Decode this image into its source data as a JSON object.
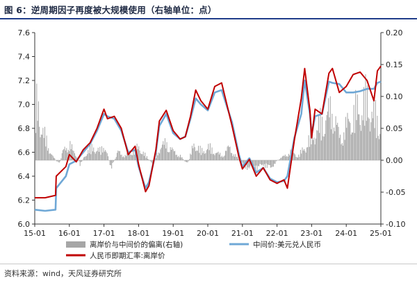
{
  "title": "图 6：逆周期因子再度被大规模使用（右轴单位：点）",
  "source": "资料来源：wind，天风证券研究所",
  "colors": {
    "deviation": "#a6a6a6",
    "central": "#6fa8d6",
    "offshore": "#c00000",
    "title_line": "#1f3c8a"
  },
  "chart_data": {
    "type": "line",
    "title": "逆周期因子再度被大规模使用（右轴单位：点）",
    "x_ticks": [
      "15-01",
      "16-01",
      "17-01",
      "18-01",
      "19-01",
      "20-01",
      "21-01",
      "22-01",
      "23-01",
      "24-01",
      "25-01"
    ],
    "x_range": [
      2015.0,
      2025.0
    ],
    "y_left": {
      "ylim": [
        6.0,
        7.6
      ],
      "ticks": [
        "6.0",
        "6.2",
        "6.4",
        "6.6",
        "6.8",
        "7.0",
        "7.2",
        "7.4",
        "7.6"
      ]
    },
    "y_right": {
      "ylim": [
        -0.1,
        0.2
      ],
      "ticks": [
        "-0.10",
        "-0.05",
        "0.00",
        "0.05",
        "0.10",
        "0.15",
        "0.20"
      ]
    },
    "series": [
      {
        "name": "离岸价与中间价的偏离(右轴)",
        "type": "bar",
        "axis": "right",
        "x": [
          2015.0,
          2015.1,
          2015.2,
          2015.3,
          2015.4,
          2015.5,
          2015.6,
          2015.7,
          2015.8,
          2015.9,
          2016.0,
          2016.1,
          2016.2,
          2016.3,
          2016.5,
          2016.7,
          2016.9,
          2017.0,
          2017.2,
          2017.4,
          2017.6,
          2017.8,
          2018.0,
          2018.2,
          2018.4,
          2018.6,
          2018.8,
          2019.0,
          2019.2,
          2019.4,
          2019.6,
          2019.8,
          2020.0,
          2020.2,
          2020.4,
          2020.6,
          2020.8,
          2021.0,
          2021.2,
          2021.4,
          2021.6,
          2021.8,
          2022.0,
          2022.2,
          2022.4,
          2022.6,
          2022.8,
          2023.0,
          2023.2,
          2023.4,
          2023.6,
          2023.8,
          2024.0,
          2024.2,
          2024.4,
          2024.6,
          2024.8,
          2025.0
        ],
        "values": [
          0.12,
          0.13,
          0.07,
          0.05,
          0.03,
          0.01,
          0.0,
          -0.01,
          0.02,
          0.03,
          0.04,
          0.02,
          0.01,
          -0.01,
          0.02,
          0.03,
          0.02,
          0.04,
          -0.02,
          0.02,
          0.01,
          0.02,
          0.03,
          0.01,
          -0.01,
          0.03,
          0.04,
          0.02,
          0.01,
          -0.01,
          0.04,
          0.02,
          0.03,
          0.02,
          0.01,
          0.03,
          0.01,
          -0.01,
          -0.02,
          -0.02,
          -0.01,
          -0.02,
          0.0,
          0.01,
          0.02,
          0.01,
          0.03,
          0.06,
          0.08,
          0.1,
          0.12,
          0.05,
          0.08,
          0.11,
          0.12,
          0.14,
          0.1,
          0.09
        ]
      },
      {
        "name": "中间价:美元兑人民币",
        "type": "line",
        "axis": "left",
        "x": [
          2015.0,
          2015.3,
          2015.6,
          2015.62,
          2015.9,
          2016.0,
          2016.2,
          2016.4,
          2016.6,
          2016.8,
          2017.0,
          2017.1,
          2017.3,
          2017.5,
          2017.7,
          2017.9,
          2018.0,
          2018.2,
          2018.3,
          2018.5,
          2018.6,
          2018.8,
          2019.0,
          2019.2,
          2019.35,
          2019.5,
          2019.65,
          2019.8,
          2020.0,
          2020.2,
          2020.4,
          2020.5,
          2020.7,
          2020.9,
          2021.0,
          2021.2,
          2021.4,
          2021.6,
          2021.8,
          2022.0,
          2022.2,
          2022.3,
          2022.5,
          2022.7,
          2022.8,
          2022.95,
          2023.0,
          2023.1,
          2023.3,
          2023.5,
          2023.6,
          2023.8,
          2024.0,
          2024.2,
          2024.4,
          2024.6,
          2024.8,
          2024.9,
          2025.0
        ],
        "values": [
          6.12,
          6.11,
          6.12,
          6.3,
          6.4,
          6.5,
          6.53,
          6.6,
          6.67,
          6.78,
          6.92,
          6.9,
          6.88,
          6.78,
          6.6,
          6.62,
          6.48,
          6.3,
          6.35,
          6.6,
          6.82,
          6.92,
          6.76,
          6.71,
          6.73,
          6.88,
          7.05,
          7.0,
          6.95,
          7.1,
          7.12,
          7.03,
          6.85,
          6.58,
          6.48,
          6.55,
          6.43,
          6.47,
          6.38,
          6.35,
          6.36,
          6.4,
          6.72,
          6.92,
          7.2,
          6.92,
          6.75,
          6.9,
          6.92,
          7.19,
          7.18,
          7.17,
          7.1,
          7.1,
          7.11,
          7.13,
          7.13,
          7.18,
          7.19
        ]
      },
      {
        "name": "人民币即期汇率:离岸价",
        "type": "line",
        "axis": "left",
        "x": [
          2015.0,
          2015.3,
          2015.6,
          2015.62,
          2015.9,
          2016.0,
          2016.2,
          2016.4,
          2016.6,
          2016.8,
          2017.0,
          2017.1,
          2017.3,
          2017.5,
          2017.7,
          2017.9,
          2018.0,
          2018.2,
          2018.3,
          2018.5,
          2018.6,
          2018.8,
          2019.0,
          2019.2,
          2019.35,
          2019.5,
          2019.65,
          2019.8,
          2020.0,
          2020.2,
          2020.4,
          2020.5,
          2020.7,
          2020.9,
          2021.0,
          2021.2,
          2021.4,
          2021.6,
          2021.8,
          2022.0,
          2022.2,
          2022.3,
          2022.5,
          2022.7,
          2022.8,
          2022.95,
          2023.0,
          2023.1,
          2023.3,
          2023.5,
          2023.6,
          2023.8,
          2024.0,
          2024.2,
          2024.4,
          2024.6,
          2024.8,
          2024.9,
          2025.0
        ],
        "values": [
          6.22,
          6.22,
          6.24,
          6.4,
          6.48,
          6.58,
          6.52,
          6.62,
          6.68,
          6.8,
          6.96,
          6.88,
          6.9,
          6.8,
          6.58,
          6.65,
          6.5,
          6.27,
          6.32,
          6.62,
          6.86,
          6.95,
          6.78,
          6.71,
          6.73,
          6.9,
          7.12,
          7.03,
          6.96,
          7.15,
          7.18,
          7.06,
          6.82,
          6.56,
          6.46,
          6.54,
          6.4,
          6.47,
          6.37,
          6.34,
          6.37,
          6.3,
          6.7,
          7.05,
          7.3,
          6.95,
          6.72,
          6.96,
          6.92,
          7.26,
          7.3,
          7.1,
          7.15,
          7.25,
          7.27,
          7.2,
          7.03,
          7.28,
          7.32
        ]
      }
    ],
    "legend": {
      "placement": "bottom"
    }
  }
}
